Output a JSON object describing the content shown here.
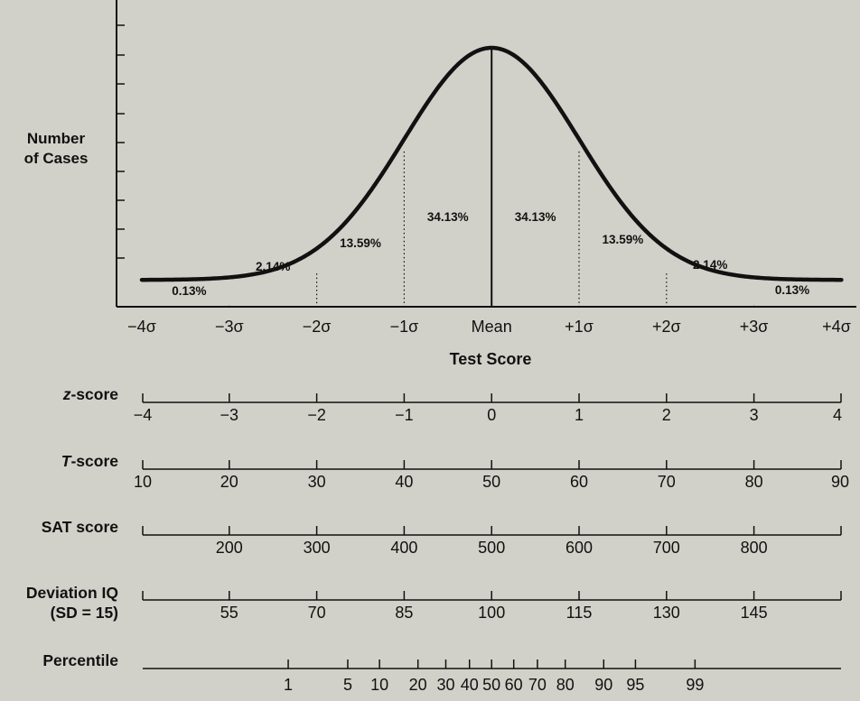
{
  "chart_data": {
    "type": "area",
    "title": "",
    "ylabel": [
      "Number",
      "of Cases"
    ],
    "xlabel": "Test Score",
    "x_range": [
      -4,
      4
    ],
    "sigma_ticks": [
      {
        "x": -4,
        "label": "−4σ"
      },
      {
        "x": -3,
        "label": "−3σ"
      },
      {
        "x": -2,
        "label": "−2σ"
      },
      {
        "x": -1,
        "label": "−1σ"
      },
      {
        "x": 0,
        "label": "Mean"
      },
      {
        "x": 1,
        "label": "+1σ"
      },
      {
        "x": 2,
        "label": "+2σ"
      },
      {
        "x": 3,
        "label": "+3σ"
      },
      {
        "x": 4,
        "label": "+4σ"
      }
    ],
    "region_percentages": [
      {
        "from": -4,
        "to": -3,
        "label": "0.13%"
      },
      {
        "from": -3,
        "to": -2,
        "label": "2.14%"
      },
      {
        "from": -2,
        "to": -1,
        "label": "13.59%"
      },
      {
        "from": -1,
        "to": 0,
        "label": "34.13%"
      },
      {
        "from": 0,
        "to": 1,
        "label": "34.13%"
      },
      {
        "from": 1,
        "to": 2,
        "label": "13.59%"
      },
      {
        "from": 2,
        "to": 3,
        "label": "2.14%"
      },
      {
        "from": 3,
        "to": 4,
        "label": "0.13%"
      }
    ],
    "scales": [
      {
        "name": "z-score",
        "italic_prefix": "z",
        "rest": "-score",
        "start_cap": true,
        "end_cap": true,
        "ticks": [
          {
            "z": -4,
            "label": "−4"
          },
          {
            "z": -3,
            "label": "−3"
          },
          {
            "z": -2,
            "label": "−2"
          },
          {
            "z": -1,
            "label": "−1"
          },
          {
            "z": 0,
            "label": "0"
          },
          {
            "z": 1,
            "label": "1"
          },
          {
            "z": 2,
            "label": "2"
          },
          {
            "z": 3,
            "label": "3"
          },
          {
            "z": 4,
            "label": "4"
          }
        ]
      },
      {
        "name": "T-score",
        "italic_prefix": "T",
        "rest": "-score",
        "start_cap": true,
        "end_cap": true,
        "ticks": [
          {
            "z": -4,
            "label": "10"
          },
          {
            "z": -3,
            "label": "20"
          },
          {
            "z": -2,
            "label": "30"
          },
          {
            "z": -1,
            "label": "40"
          },
          {
            "z": 0,
            "label": "50"
          },
          {
            "z": 1,
            "label": "60"
          },
          {
            "z": 2,
            "label": "70"
          },
          {
            "z": 3,
            "label": "80"
          },
          {
            "z": 4,
            "label": "90"
          }
        ]
      },
      {
        "name": "SAT score",
        "italic_prefix": "",
        "rest": "SAT score",
        "start_cap": true,
        "end_cap": true,
        "ticks": [
          {
            "z": -3,
            "label": "200"
          },
          {
            "z": -2,
            "label": "300"
          },
          {
            "z": -1,
            "label": "400"
          },
          {
            "z": 0,
            "label": "500"
          },
          {
            "z": 1,
            "label": "600"
          },
          {
            "z": 2,
            "label": "700"
          },
          {
            "z": 3,
            "label": "800"
          }
        ]
      },
      {
        "name": "Deviation IQ",
        "italic_prefix": "",
        "rest": "Deviation IQ",
        "second_line": "(SD = 15)",
        "start_cap": true,
        "end_cap": true,
        "ticks": [
          {
            "z": -3,
            "label": "55"
          },
          {
            "z": -2,
            "label": "70"
          },
          {
            "z": -1,
            "label": "85"
          },
          {
            "z": 0,
            "label": "100"
          },
          {
            "z": 1,
            "label": "115"
          },
          {
            "z": 2,
            "label": "130"
          },
          {
            "z": 3,
            "label": "145"
          }
        ]
      },
      {
        "name": "Percentile",
        "italic_prefix": "",
        "rest": "Percentile",
        "start_cap": false,
        "end_cap": false,
        "ticks": [
          {
            "z": -2.326,
            "label": "1"
          },
          {
            "z": -1.645,
            "label": "5"
          },
          {
            "z": -1.282,
            "label": "10"
          },
          {
            "z": -0.842,
            "label": "20"
          },
          {
            "z": -0.524,
            "label": "30"
          },
          {
            "z": -0.253,
            "label": "40"
          },
          {
            "z": 0,
            "label": "50"
          },
          {
            "z": 0.253,
            "label": "60"
          },
          {
            "z": 0.524,
            "label": "70"
          },
          {
            "z": 0.842,
            "label": "80"
          },
          {
            "z": 1.282,
            "label": "90"
          },
          {
            "z": 1.645,
            "label": "95"
          },
          {
            "z": 2.326,
            "label": "99"
          }
        ]
      }
    ],
    "grid": false,
    "legend": "none",
    "colors": {
      "background": "#d2d1c9",
      "ink": "#111111"
    }
  }
}
